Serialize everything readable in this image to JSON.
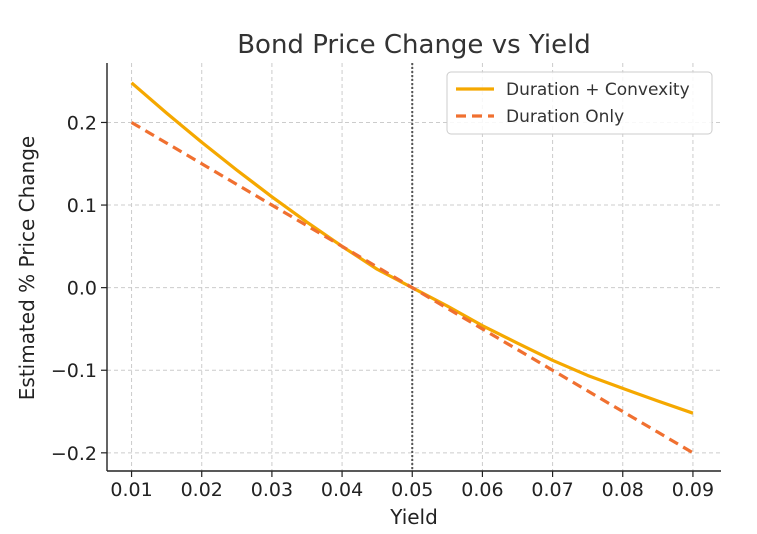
{
  "chart_data": {
    "type": "line",
    "title": "Bond Price Change vs Yield",
    "xlabel": "Yield",
    "ylabel": "Estimated % Price Change",
    "xlim": [
      0.0065,
      0.094
    ],
    "ylim": [
      -0.222,
      0.272
    ],
    "xticks": [
      0.01,
      0.02,
      0.03,
      0.04,
      0.05,
      0.06,
      0.07,
      0.08,
      0.09
    ],
    "xtick_labels": [
      "0.01",
      "0.02",
      "0.03",
      "0.04",
      "0.05",
      "0.06",
      "0.07",
      "0.08",
      "0.09"
    ],
    "yticks": [
      0.2,
      0.1,
      0.0,
      -0.1,
      -0.2
    ],
    "ytick_labels": [
      "0.2",
      "0.1",
      "0.0",
      "−0.1",
      "−0.2"
    ],
    "grid": true,
    "legend_position": "top-right",
    "reference_line": {
      "orientation": "vertical",
      "x": 0.05,
      "style": "dotted",
      "color": "#555555"
    },
    "x": [
      0.01,
      0.015,
      0.02,
      0.025,
      0.03,
      0.035,
      0.04,
      0.045,
      0.05,
      0.055,
      0.06,
      0.065,
      0.07,
      0.075,
      0.08,
      0.085,
      0.09
    ],
    "series": [
      {
        "name": "Duration + Convexity",
        "color": "#f5a800",
        "style": "solid",
        "values": [
          0.248,
          0.2113,
          0.176,
          0.1423,
          0.11,
          0.0793,
          0.05,
          0.0223,
          0.0,
          -0.0223,
          -0.046,
          -0.0673,
          -0.088,
          -0.1063,
          -0.122,
          -0.1373,
          -0.152
        ]
      },
      {
        "name": "Duration Only",
        "color": "#f07030",
        "style": "dashed",
        "values": [
          0.2,
          0.175,
          0.15,
          0.125,
          0.1,
          0.075,
          0.05,
          0.025,
          0.0,
          -0.025,
          -0.05,
          -0.075,
          -0.1,
          -0.125,
          -0.15,
          -0.175,
          -0.2
        ]
      }
    ]
  }
}
